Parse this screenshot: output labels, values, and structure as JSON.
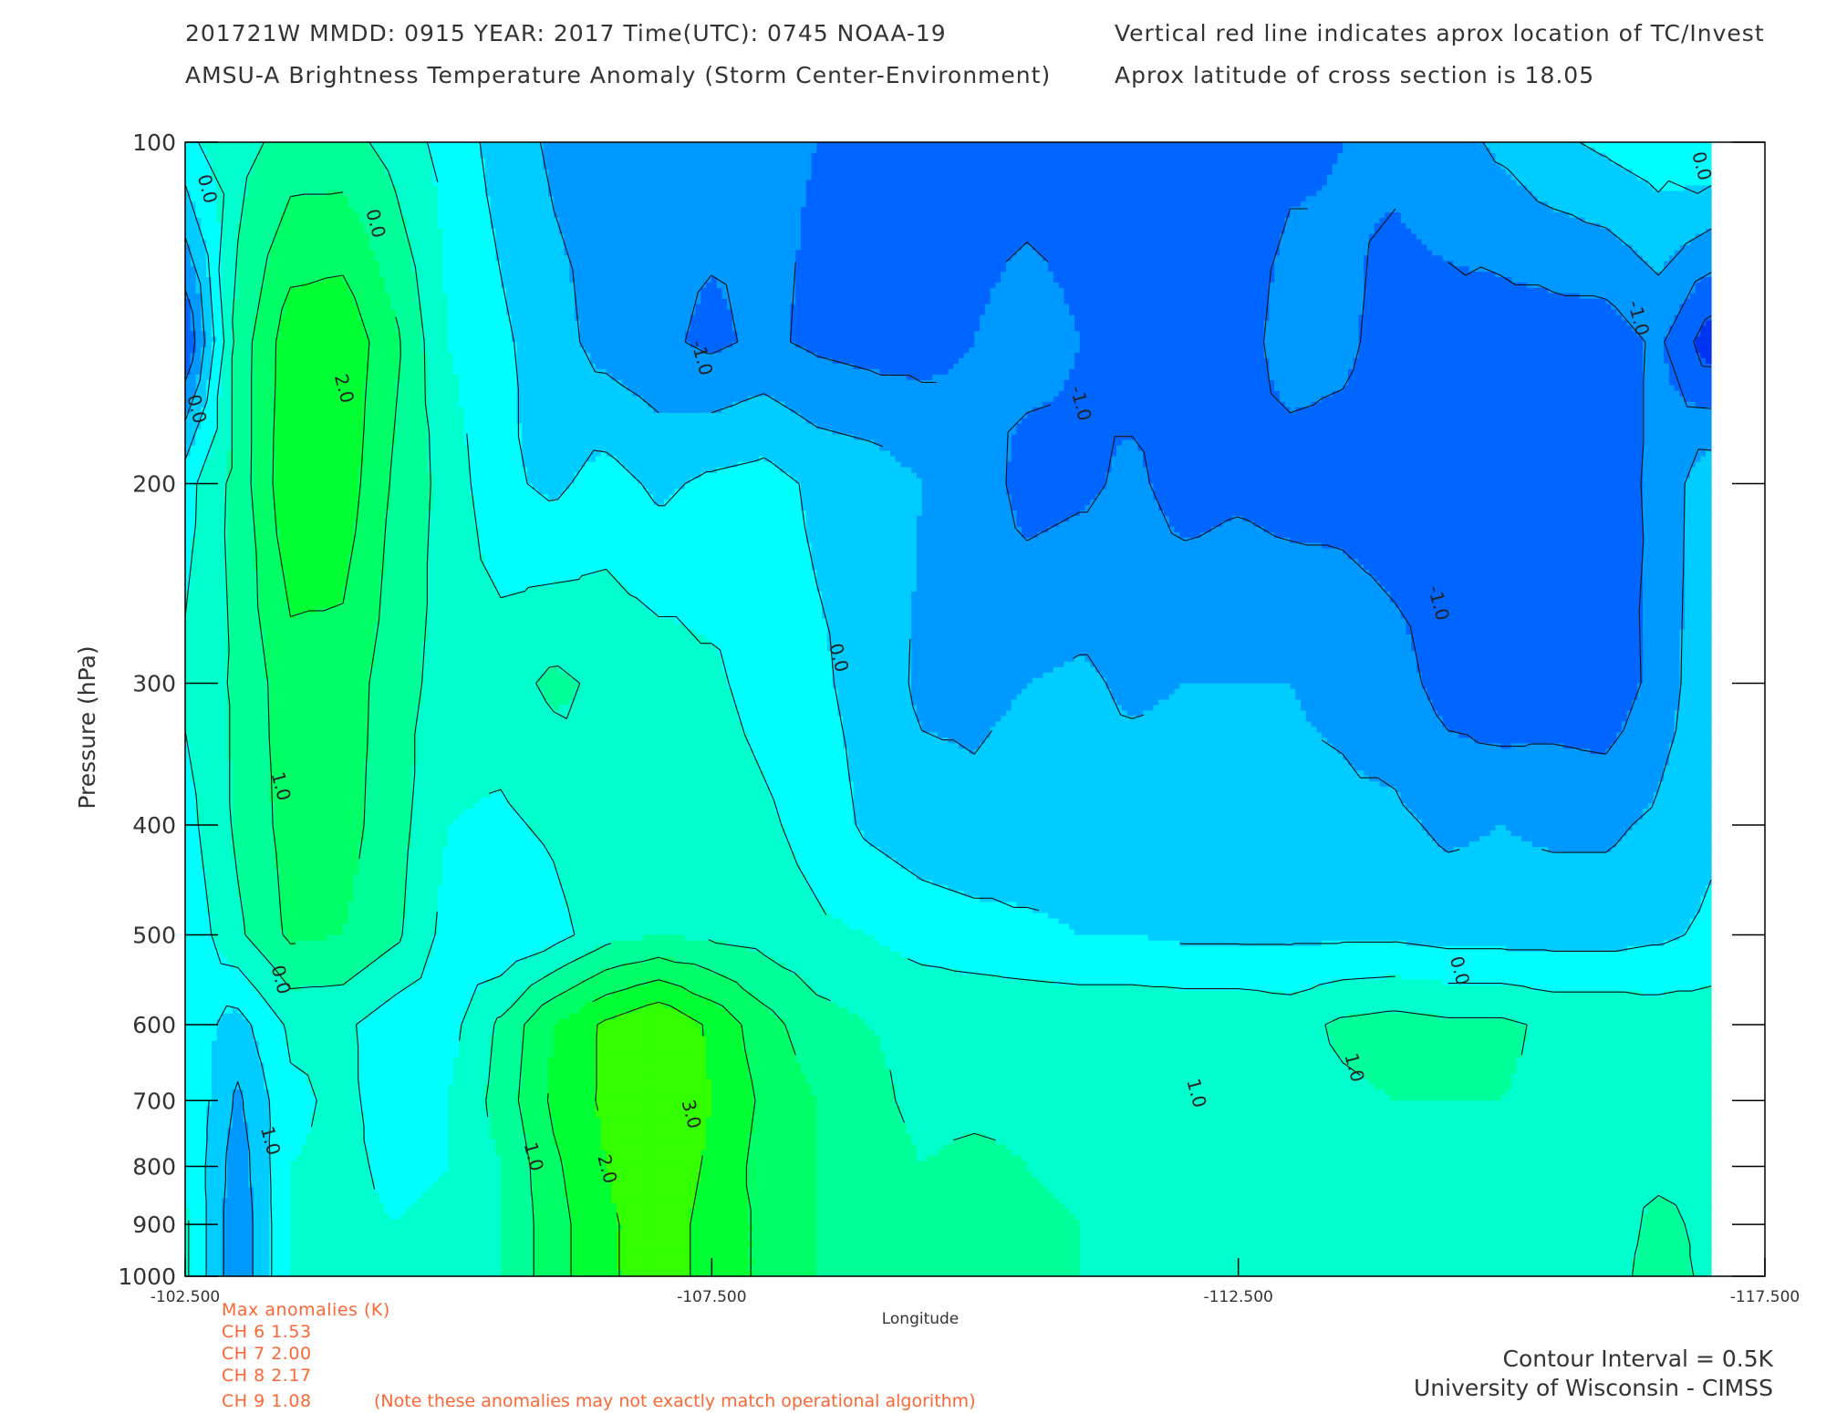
{
  "header": {
    "line1": "201721W  MMDD: 0915 YEAR: 2017 Time(UTC): 0745 NOAA-19",
    "line2": "AMSU-A Brightness Temperature Anomaly (Storm Center-Environment)",
    "line3": "Vertical red line indicates aprox location of TC/Invest",
    "line4": "Aprox latitude of cross section is 18.05"
  },
  "max_anomalies": {
    "title": "Max anomalies (K)",
    "rows": [
      "CH 6  1.53",
      "CH 7  2.00",
      "CH 8  2.17",
      "CH 9  1.08"
    ],
    "note": "(Note these anomalies may not exactly match operational algorithm)"
  },
  "footer": {
    "contour_interval": "Contour Interval = 0.5K",
    "credit": "University of Wisconsin - CIMSS"
  },
  "colors": {
    "m2.0": "#0033ee",
    "m1.5": "#0066ff",
    "m1.0": "#0099ff",
    "m0.5": "#00ccff",
    "p0.0": "#00ffff",
    "p0.5": "#00ffcc",
    "p1.0": "#00ff99",
    "p1.5": "#00ff66",
    "p2.0": "#00ff33",
    "p2.5": "#33ff00",
    "p3.0": "#66ff33"
  },
  "chart_data": {
    "type": "contour",
    "title": "AMSU-A Brightness Temperature Anomaly (Storm Center-Environment)",
    "xlabel": "Longitude",
    "ylabel": "Pressure (hPa)",
    "xlim": [
      -102.5,
      -117.5
    ],
    "ylim": [
      1000,
      100
    ],
    "yscale": "log",
    "x_ticks": [
      "-102.500",
      "-107.500",
      "-112.500",
      "-117.500"
    ],
    "y_ticks": [
      100,
      200,
      300,
      400,
      500,
      600,
      700,
      800,
      900,
      1000
    ],
    "contour_interval": 0.5,
    "x": [
      -102.5,
      -103.0,
      -103.5,
      -104.0,
      -104.5,
      -105.0,
      -105.5,
      -106.0,
      -106.5,
      -107.0,
      -107.5,
      -108.0,
      -108.5,
      -109.0,
      -109.5,
      -110.0,
      -110.5,
      -111.0,
      -111.5,
      -112.0,
      -112.5,
      -113.0,
      -113.5,
      -114.0,
      -114.5,
      -115.0,
      -115.5,
      -116.0,
      -116.5,
      -117.0
    ],
    "pressure": [
      100,
      150,
      200,
      300,
      400,
      500,
      600,
      700,
      800,
      900,
      1000
    ],
    "z": [
      [
        0.4,
        0.8,
        1.2,
        1.2,
        0.8,
        0.3,
        -0.2,
        -0.6,
        -0.7,
        -0.8,
        -0.8,
        -0.9,
        -1.0,
        -1.1,
        -1.2,
        -1.2,
        -1.2,
        -1.2,
        -1.2,
        -1.2,
        -1.2,
        -1.1,
        -1.0,
        -0.9,
        -0.7,
        -0.4,
        -0.1,
        0.1,
        0.3,
        0.5
      ],
      [
        -1.5,
        1.2,
        2.3,
        2.4,
        1.6,
        0.5,
        0.1,
        -0.3,
        -0.7,
        -0.9,
        -1.1,
        -0.9,
        -1.1,
        -1.2,
        -1.2,
        -1.0,
        -0.8,
        -1.0,
        -1.2,
        -1.2,
        -1.2,
        -0.8,
        -0.9,
        -1.2,
        -1.2,
        -1.3,
        -1.3,
        -1.3,
        -0.9,
        -1.8
      ],
      [
        0.3,
        1.2,
        2.4,
        2.3,
        1.4,
        0.8,
        0.1,
        -0.1,
        0.2,
        -0.1,
        0.1,
        0.2,
        -0.1,
        -0.2,
        -0.5,
        -0.7,
        -1.2,
        -1.1,
        -0.9,
        -1.2,
        -1.1,
        -1.2,
        -1.2,
        -1.3,
        -1.3,
        -1.3,
        -1.2,
        -1.2,
        -0.9,
        -0.1
      ],
      [
        0.6,
        1.1,
        1.8,
        1.8,
        1.2,
        0.8,
        0.8,
        1.1,
        0.9,
        0.8,
        0.6,
        0.3,
        0.1,
        -0.2,
        -0.6,
        -0.6,
        -0.5,
        -0.4,
        -0.6,
        -0.5,
        -0.5,
        -0.5,
        -0.6,
        -0.8,
        -1.2,
        -1.4,
        -1.3,
        -1.4,
        -0.8,
        -0.1
      ],
      [
        0.3,
        1.1,
        1.7,
        1.7,
        1.2,
        0.5,
        0.4,
        0.6,
        1.0,
        1.0,
        0.8,
        0.6,
        0.3,
        -0.1,
        -0.3,
        -0.4,
        -0.3,
        -0.3,
        -0.2,
        -0.2,
        -0.3,
        -0.4,
        -0.4,
        -0.4,
        -0.6,
        -0.5,
        -0.6,
        -0.6,
        -0.4,
        -0.1
      ],
      [
        0.1,
        0.9,
        1.6,
        1.5,
        1.1,
        0.3,
        0.0,
        0.3,
        0.8,
        1.0,
        0.9,
        0.8,
        0.6,
        0.5,
        0.3,
        0.2,
        0.1,
        0.0,
        0.0,
        -0.1,
        -0.1,
        -0.1,
        -0.1,
        -0.1,
        -0.2,
        -0.2,
        -0.2,
        -0.2,
        -0.1,
        0.1
      ],
      [
        0.3,
        -0.2,
        0.6,
        0.6,
        0.2,
        0.3,
        1.1,
        2.0,
        2.6,
        3.0,
        2.4,
        1.7,
        1.2,
        1.0,
        0.9,
        0.9,
        0.9,
        0.9,
        0.9,
        0.9,
        0.9,
        0.8,
        1.1,
        1.2,
        1.1,
        1.1,
        0.9,
        0.9,
        0.8,
        0.8
      ],
      [
        0.5,
        -0.6,
        0.4,
        0.6,
        0.3,
        0.5,
        1.2,
        2.1,
        2.6,
        3.0,
        2.5,
        1.9,
        1.5,
        1.1,
        0.9,
        0.9,
        0.9,
        0.8,
        0.7,
        0.8,
        0.8,
        0.8,
        0.9,
        1.0,
        1.0,
        1.0,
        0.9,
        0.9,
        0.8,
        0.8
      ],
      [
        0.5,
        -0.8,
        0.5,
        0.6,
        0.4,
        0.5,
        1.0,
        1.9,
        2.5,
        2.9,
        2.4,
        1.8,
        1.5,
        1.2,
        1.0,
        1.1,
        1.0,
        0.8,
        0.6,
        0.7,
        0.7,
        0.7,
        0.8,
        0.8,
        0.8,
        0.8,
        0.8,
        0.9,
        0.9,
        0.9
      ],
      [
        0.6,
        -0.9,
        0.5,
        0.6,
        0.5,
        0.6,
        1.0,
        1.8,
        2.4,
        2.8,
        2.3,
        1.9,
        1.5,
        1.2,
        1.1,
        1.3,
        1.2,
        1.0,
        0.7,
        0.7,
        0.7,
        0.7,
        0.7,
        0.7,
        0.8,
        0.8,
        0.8,
        0.8,
        1.1,
        0.9
      ],
      [
        0.6,
        -0.9,
        0.5,
        0.6,
        0.5,
        0.6,
        1.0,
        1.8,
        2.4,
        2.8,
        2.3,
        1.9,
        1.5,
        1.2,
        1.1,
        1.3,
        1.3,
        1.0,
        0.7,
        0.7,
        0.7,
        0.7,
        0.7,
        0.7,
        0.8,
        0.8,
        0.8,
        0.8,
        1.2,
        0.9
      ]
    ],
    "contour_labels": [
      {
        "text": "0.0",
        "x": -102.7,
        "p": 110
      },
      {
        "text": "0.0",
        "x": -104.3,
        "p": 118
      },
      {
        "text": "2.0",
        "x": -104.0,
        "p": 165
      },
      {
        "text": "0.0",
        "x": -102.6,
        "p": 172
      },
      {
        "text": "-1.0",
        "x": -107.4,
        "p": 155
      },
      {
        "text": "-1.0",
        "x": -111.0,
        "p": 170
      },
      {
        "text": "0.0",
        "x": -116.9,
        "p": 105
      },
      {
        "text": "-1.0",
        "x": -116.3,
        "p": 143
      },
      {
        "text": "-1.0",
        "x": -114.4,
        "p": 255
      },
      {
        "text": "0.0",
        "x": -108.7,
        "p": 285
      },
      {
        "text": "1.0",
        "x": -103.4,
        "p": 370
      },
      {
        "text": "0.0",
        "x": -103.4,
        "p": 548
      },
      {
        "text": "0.0",
        "x": -114.6,
        "p": 538
      },
      {
        "text": "1.0",
        "x": -103.3,
        "p": 760
      },
      {
        "text": "1.0",
        "x": -105.8,
        "p": 785
      },
      {
        "text": "2.0",
        "x": -106.5,
        "p": 805
      },
      {
        "text": "3.0",
        "x": -107.3,
        "p": 720
      },
      {
        "text": "1.0",
        "x": -112.1,
        "p": 690
      },
      {
        "text": "1.0",
        "x": -113.6,
        "p": 655
      }
    ]
  }
}
